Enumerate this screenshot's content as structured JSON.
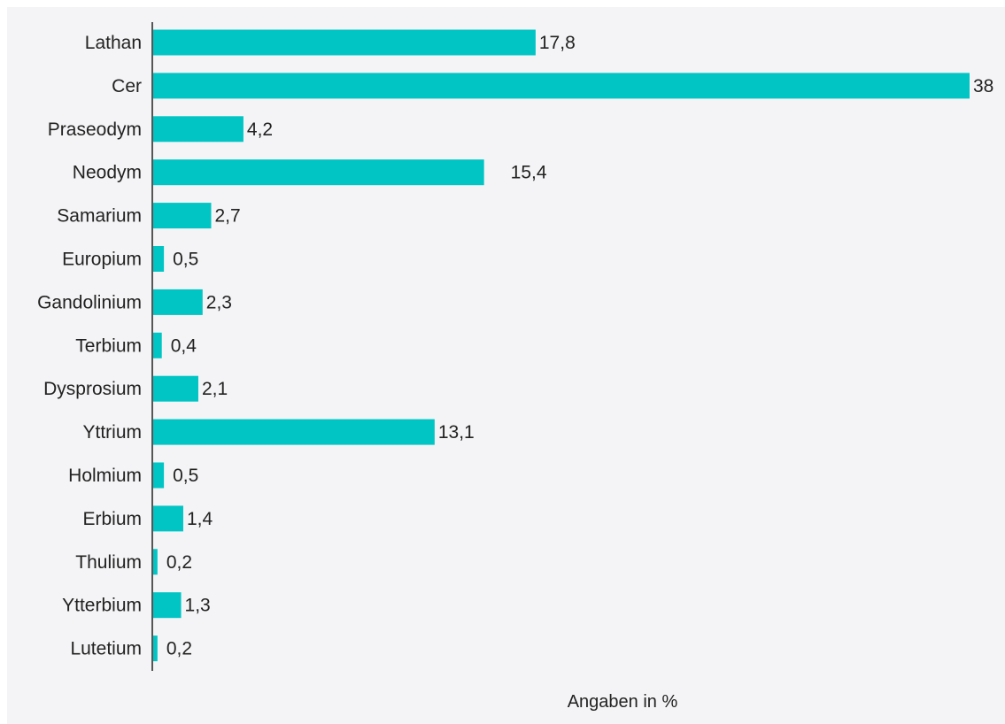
{
  "chart_data": {
    "type": "bar",
    "orientation": "horizontal",
    "categories": [
      "Lathan",
      "Cer",
      "Praseodym",
      "Neodym",
      "Samarium",
      "Europium",
      "Gandolinium",
      "Terbium",
      "Dysprosium",
      "Yttrium",
      "Holmium",
      "Erbium",
      "Thulium",
      "Ytterbium",
      "Lutetium"
    ],
    "values": [
      17.8,
      38,
      4.2,
      15.4,
      2.7,
      0.5,
      2.3,
      0.4,
      2.1,
      13.1,
      0.5,
      1.4,
      0.2,
      1.3,
      0.2
    ],
    "value_labels": [
      "17,8",
      "38",
      "4,2",
      "15,4",
      "2,7",
      "0,5",
      "2,3",
      "0,4",
      "2,1",
      "13,1",
      "0,5",
      "1,4",
      "0,2",
      "1,3",
      "0,2"
    ],
    "title": "",
    "xlabel": "",
    "ylabel": "",
    "xlim": [
      0,
      38
    ],
    "grid": false,
    "legend": "none",
    "bar_color": "#00c5c4",
    "note": "Angaben in %"
  }
}
